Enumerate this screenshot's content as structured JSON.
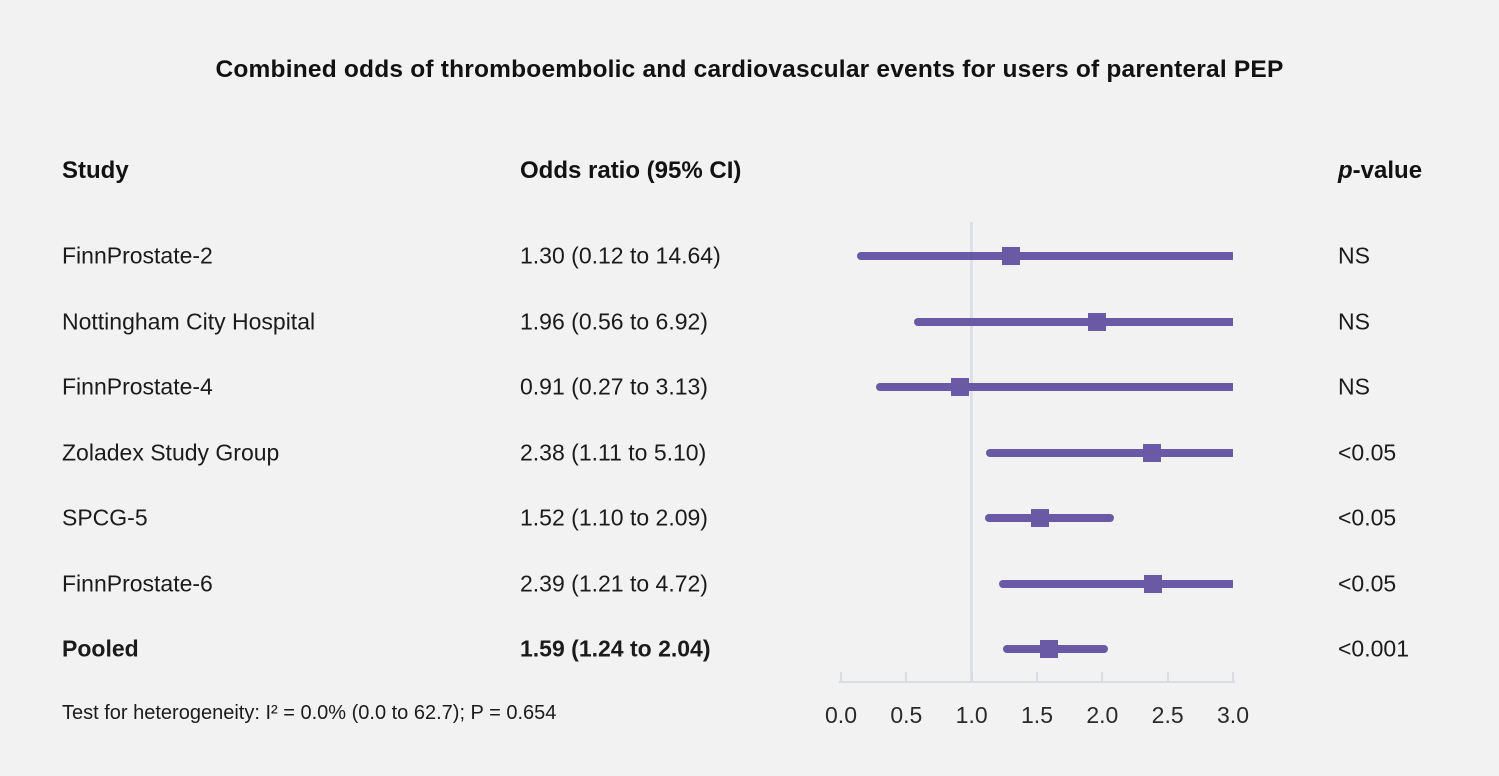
{
  "chart_data": {
    "type": "forest",
    "title": "Combined odds of thromboembolic and cardiovascular events for users of parenteral PEP",
    "columns": {
      "study": "Study",
      "odds_ratio": "Odds ratio (95% CI)",
      "p_italic": "p",
      "p_rest": "-value"
    },
    "axis": {
      "xlabel_ticks": [
        "0.0",
        "0.5",
        "1.0",
        "1.5",
        "2.0",
        "2.5",
        "3.0"
      ],
      "tick_values": [
        0,
        0.5,
        1,
        1.5,
        2,
        2.5,
        3
      ],
      "xlim": [
        0,
        3
      ],
      "reference_value": 1.0,
      "truncation_limit": 3.0
    },
    "rows": [
      {
        "study": "FinnProstate-2",
        "or_text": "1.30 (0.12 to 14.64)",
        "or": 1.3,
        "lower": 0.12,
        "upper": 14.64,
        "p": "NS",
        "bold": false
      },
      {
        "study": "Nottingham City Hospital",
        "or_text": "1.96 (0.56 to 6.92)",
        "or": 1.96,
        "lower": 0.56,
        "upper": 6.92,
        "p": "NS",
        "bold": false
      },
      {
        "study": "FinnProstate-4",
        "or_text": "0.91 (0.27 to 3.13)",
        "or": 0.91,
        "lower": 0.27,
        "upper": 3.13,
        "p": "NS",
        "bold": false
      },
      {
        "study": "Zoladex Study Group",
        "or_text": "2.38 (1.11 to 5.10)",
        "or": 2.38,
        "lower": 1.11,
        "upper": 5.1,
        "p": "<0.05",
        "bold": false
      },
      {
        "study": "SPCG-5",
        "or_text": "1.52 (1.10 to 2.09)",
        "or": 1.52,
        "lower": 1.1,
        "upper": 2.09,
        "p": "<0.05",
        "bold": false
      },
      {
        "study": "FinnProstate-6",
        "or_text": "2.39 (1.21 to 4.72)",
        "or": 2.39,
        "lower": 1.21,
        "upper": 4.72,
        "p": "<0.05",
        "bold": false
      },
      {
        "study": "Pooled",
        "or_text": "1.59 (1.24 to 2.04)",
        "or": 1.59,
        "lower": 1.24,
        "upper": 2.04,
        "p": "<0.001",
        "bold": true
      }
    ],
    "footnote": "Test for heterogeneity: I² = 0.0% (0.0 to 62.7); P = 0.654",
    "colors": {
      "marker": "#6a5aa5",
      "reference_line": "#dce1e7",
      "axis": "#d8dde3",
      "background": "#f2f2f2",
      "text": "#1b1b1b"
    }
  }
}
